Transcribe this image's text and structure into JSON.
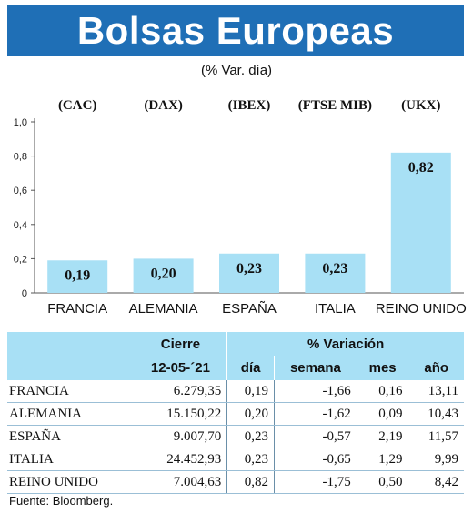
{
  "header": {
    "title": "Bolsas Europeas",
    "subtitle": "(% Var. día)"
  },
  "chart_data": {
    "type": "bar",
    "categories": [
      "FRANCIA",
      "ALEMANIA",
      "ESPAÑA",
      "ITALIA",
      "REINO UNIDO"
    ],
    "indices": [
      "(CAC)",
      "(DAX)",
      "(IBEX)",
      "(FTSE MIB)",
      "(UKX)"
    ],
    "values": [
      0.19,
      0.2,
      0.23,
      0.23,
      0.82
    ],
    "value_labels": [
      "0,19",
      "0,20",
      "0,23",
      "0,23",
      "0,82"
    ],
    "yticks": [
      "0",
      "0,2",
      "0,4",
      "0,6",
      "0,8",
      "1,0"
    ],
    "ylim": [
      0,
      1.0
    ],
    "bar_color": "#a8e0f5",
    "grid": false
  },
  "table": {
    "header_cierre": "Cierre",
    "header_variacion": "% Variación",
    "date": "12-05-´21",
    "columns": [
      "día",
      "semana",
      "mes",
      "año"
    ],
    "rows": [
      {
        "country": "FRANCIA",
        "cierre": "6.279,35",
        "dia": "0,19",
        "semana": "-1,66",
        "mes": "0,16",
        "ano": "13,11"
      },
      {
        "country": "ALEMANIA",
        "cierre": "15.150,22",
        "dia": "0,20",
        "semana": "-1,62",
        "mes": "0,09",
        "ano": "10,43"
      },
      {
        "country": "ESPAÑA",
        "cierre": "9.007,70",
        "dia": "0,23",
        "semana": "-0,57",
        "mes": "2,19",
        "ano": "11,57"
      },
      {
        "country": "ITALIA",
        "cierre": "24.452,93",
        "dia": "0,23",
        "semana": "-0,65",
        "mes": "1,29",
        "ano": "9,99"
      },
      {
        "country": "REINO UNIDO",
        "cierre": "7.004,63",
        "dia": "0,82",
        "semana": "-1,75",
        "mes": "0,50",
        "ano": "8,42"
      }
    ]
  },
  "source": "Fuente: Bloomberg."
}
